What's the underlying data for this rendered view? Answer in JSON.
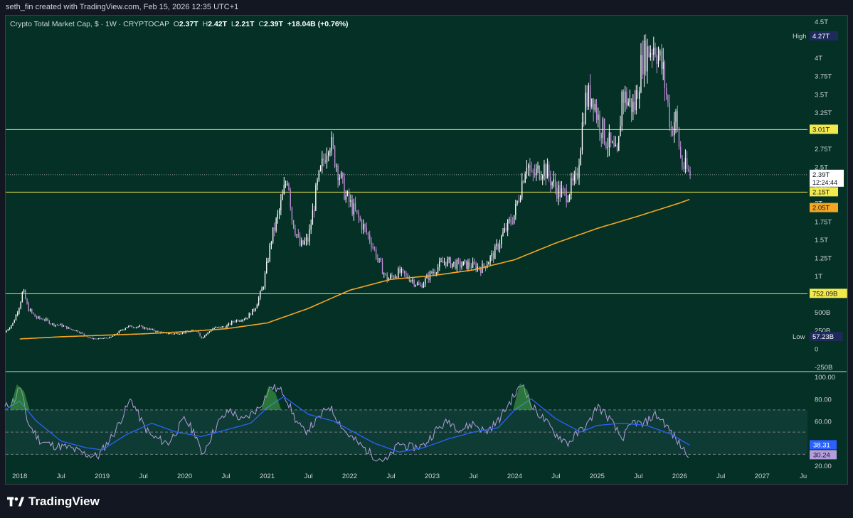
{
  "header": {
    "credit": "seth_fin created with TradingView.com, Feb 15, 2026 12:35 UTC+1"
  },
  "legend": {
    "symbol": "Crypto Total Market Cap, $ · 1W · CRYPTOCAP",
    "o_label": "O",
    "o_value": "2.37T",
    "h_label": "H",
    "h_value": "2.42T",
    "l_label": "L",
    "l_value": "2.21T",
    "c_label": "C",
    "c_value": "2.39T",
    "change": "+18.04B (+0.76%)"
  },
  "colors": {
    "background": "#043025",
    "candle_up": "#ffffff",
    "candle_down": "#c08fd9",
    "ma": "#f5a623",
    "levels": "#f2e94e",
    "rsi": "#b39ddb",
    "rsi_ma": "#2962ff"
  },
  "chart_data": [
    {
      "type": "candlestick",
      "title": "",
      "y_ticks": [
        "4.5T",
        "4T",
        "3.75T",
        "3.5T",
        "3.25T",
        "3T",
        "2.75T",
        "2.5T",
        "2.25T",
        "2T",
        "1.75T",
        "1.5T",
        "1.25T",
        "1T",
        "750B",
        "500B",
        "250B",
        "0",
        "-250B"
      ],
      "y_tick_values": [
        4.5,
        4.0,
        3.75,
        3.5,
        3.25,
        3.0,
        2.75,
        2.5,
        2.25,
        2.0,
        1.75,
        1.5,
        1.25,
        1.0,
        0.75,
        0.5,
        0.25,
        0,
        -0.25
      ],
      "x_ticks": [
        "2018",
        "Jul",
        "2019",
        "Jul",
        "2020",
        "Jul",
        "2021",
        "Jul",
        "2022",
        "Jul",
        "2023",
        "Jul",
        "2024",
        "Jul",
        "2025",
        "Jul",
        "2026",
        "Jul",
        "2027",
        "Ju"
      ],
      "x_tick_values": [
        2018.0,
        2018.5,
        2019.0,
        2019.5,
        2020.0,
        2020.5,
        2021.0,
        2021.5,
        2022.0,
        2022.5,
        2023.0,
        2023.5,
        2024.0,
        2024.5,
        2025.0,
        2025.5,
        2026.0,
        2026.5,
        2027.0,
        2027.5
      ],
      "price_series": {
        "name": "Crypto Total Market Cap",
        "x": [
          2017.82,
          2017.92,
          2018.0,
          2018.04,
          2018.1,
          2018.2,
          2018.3,
          2018.4,
          2018.5,
          2018.6,
          2018.7,
          2018.85,
          2018.95,
          2019.1,
          2019.3,
          2019.45,
          2019.55,
          2019.7,
          2019.85,
          2020.0,
          2020.15,
          2020.2,
          2020.35,
          2020.5,
          2020.6,
          2020.75,
          2020.85,
          2020.95,
          2021.05,
          2021.15,
          2021.25,
          2021.3,
          2021.4,
          2021.5,
          2021.6,
          2021.75,
          2021.85,
          2021.95,
          2022.1,
          2022.25,
          2022.35,
          2022.45,
          2022.6,
          2022.75,
          2022.85,
          2023.0,
          2023.15,
          2023.3,
          2023.45,
          2023.6,
          2023.75,
          2023.85,
          2024.0,
          2024.15,
          2024.2,
          2024.35,
          2024.5,
          2024.6,
          2024.75,
          2024.85,
          2024.95,
          2025.0,
          2025.1,
          2025.25,
          2025.3,
          2025.45,
          2025.55,
          2025.7,
          2025.8,
          2025.9,
          2025.95,
          2026.02,
          2026.12
        ],
        "close": [
          0.22,
          0.35,
          0.6,
          0.8,
          0.55,
          0.42,
          0.4,
          0.33,
          0.32,
          0.27,
          0.24,
          0.14,
          0.13,
          0.15,
          0.3,
          0.3,
          0.27,
          0.22,
          0.2,
          0.22,
          0.25,
          0.14,
          0.28,
          0.3,
          0.38,
          0.42,
          0.55,
          0.85,
          1.5,
          1.9,
          2.4,
          1.8,
          1.4,
          1.5,
          2.2,
          2.9,
          2.5,
          2.1,
          1.8,
          1.5,
          1.2,
          0.95,
          1.05,
          0.95,
          0.85,
          1.05,
          1.2,
          1.15,
          1.15,
          1.1,
          1.3,
          1.55,
          1.85,
          2.6,
          2.35,
          2.5,
          2.2,
          2.1,
          2.3,
          3.4,
          3.5,
          3.2,
          2.9,
          2.6,
          3.5,
          3.3,
          4.0,
          4.2,
          3.8,
          3.0,
          3.2,
          2.55,
          2.39
        ]
      },
      "ma_series": {
        "x": [
          2018.0,
          2018.5,
          2019.0,
          2019.5,
          2020.0,
          2020.5,
          2021.0,
          2021.5,
          2022.0,
          2022.5,
          2023.0,
          2023.5,
          2024.0,
          2024.5,
          2025.0,
          2025.5,
          2026.0,
          2026.12
        ],
        "values": [
          0.13,
          0.16,
          0.18,
          0.2,
          0.23,
          0.27,
          0.35,
          0.55,
          0.8,
          0.95,
          1.0,
          1.08,
          1.22,
          1.45,
          1.65,
          1.82,
          2.0,
          2.05
        ]
      },
      "horizontal_levels": [
        {
          "label": "3.01T",
          "value": 3.01,
          "style": "solid"
        },
        {
          "label": "2.15T",
          "value": 2.15,
          "style": "solid"
        },
        {
          "label": "752.09B",
          "value": 0.752,
          "style": "solid"
        }
      ],
      "price_labels": {
        "high_label": "High",
        "high_value": "4.27T",
        "low_label": "Low",
        "low_value": "57.23B",
        "last_value": "2.39T",
        "countdown": "12:24:44",
        "ma_value": "2.05T"
      }
    },
    {
      "type": "line",
      "title": "",
      "y_ticks": [
        "100.00",
        "80.00",
        "60.00",
        "40.00",
        "20.00"
      ],
      "y_tick_values": [
        100,
        80,
        60,
        40,
        20
      ],
      "bands": [
        70,
        50,
        30
      ],
      "rsi_series": {
        "x": [
          2017.82,
          2017.95,
          2018.0,
          2018.1,
          2018.25,
          2018.4,
          2018.6,
          2018.8,
          2018.95,
          2019.15,
          2019.35,
          2019.5,
          2019.6,
          2019.8,
          2020.0,
          2020.15,
          2020.2,
          2020.4,
          2020.55,
          2020.7,
          2020.9,
          2021.05,
          2021.2,
          2021.35,
          2021.45,
          2021.6,
          2021.75,
          2021.85,
          2021.95,
          2022.1,
          2022.3,
          2022.45,
          2022.6,
          2022.75,
          2022.9,
          2023.05,
          2023.2,
          2023.35,
          2023.5,
          2023.65,
          2023.8,
          2023.95,
          2024.1,
          2024.2,
          2024.35,
          2024.5,
          2024.65,
          2024.8,
          2024.9,
          2025.0,
          2025.15,
          2025.3,
          2025.45,
          2025.55,
          2025.7,
          2025.8,
          2025.95,
          2026.05,
          2026.12
        ],
        "values": [
          72,
          80,
          93,
          58,
          42,
          38,
          36,
          30,
          28,
          50,
          80,
          56,
          46,
          40,
          62,
          46,
          28,
          58,
          70,
          60,
          72,
          91,
          86,
          60,
          50,
          60,
          74,
          62,
          50,
          40,
          28,
          24,
          40,
          36,
          38,
          52,
          60,
          52,
          58,
          50,
          60,
          78,
          94,
          74,
          62,
          48,
          40,
          52,
          58,
          74,
          62,
          44,
          60,
          56,
          66,
          60,
          44,
          34,
          30.24
        ]
      },
      "rsi_ma_series": {
        "x": [
          2017.82,
          2018.0,
          2018.2,
          2018.5,
          2018.8,
          2019.0,
          2019.3,
          2019.6,
          2019.9,
          2020.2,
          2020.5,
          2020.8,
          2021.0,
          2021.2,
          2021.5,
          2021.8,
          2022.0,
          2022.3,
          2022.6,
          2022.9,
          2023.2,
          2023.5,
          2023.8,
          2024.0,
          2024.2,
          2024.5,
          2024.8,
          2025.0,
          2025.3,
          2025.6,
          2025.9,
          2026.12
        ],
        "values": [
          70,
          78,
          60,
          42,
          36,
          34,
          48,
          58,
          50,
          46,
          52,
          58,
          72,
          82,
          66,
          60,
          52,
          40,
          32,
          36,
          44,
          50,
          54,
          70,
          80,
          62,
          50,
          56,
          58,
          56,
          48,
          38.31
        ]
      },
      "price_labels": {
        "rsi_ma_value": "38.31",
        "rsi_value": "30.24"
      }
    }
  ],
  "footer": {
    "brand": "TradingView"
  }
}
